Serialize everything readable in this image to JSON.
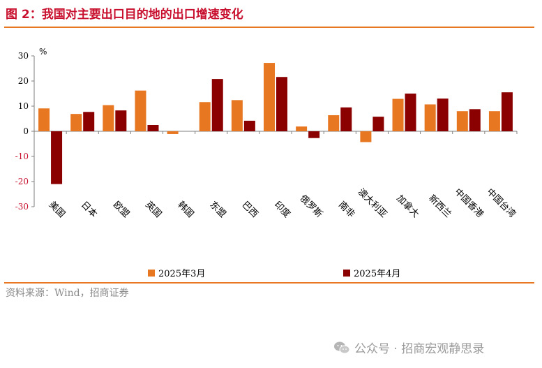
{
  "title": "图 2：我国对主要出口目的地的出口增速变化",
  "source": "资料来源：Wind，招商证券",
  "watermark": "公众号 · 招商宏观静思录",
  "colors": {
    "series1": "#e87722",
    "series2": "#8b0000",
    "negative_tick": "#c8102e",
    "rule": "#e87722"
  },
  "chart_data": {
    "type": "bar",
    "unit": "%",
    "ylim": [
      -30,
      30
    ],
    "yticks": [
      30,
      20,
      10,
      0,
      -10,
      -20,
      -30
    ],
    "grid": false,
    "legend_position": "bottom",
    "categories": [
      "美国",
      "日本",
      "欧盟",
      "英国",
      "韩国",
      "东盟",
      "巴西",
      "印度",
      "俄罗斯",
      "南非",
      "澳大利亚",
      "加拿大",
      "新西兰",
      "中国香港",
      "中国台湾"
    ],
    "series": [
      {
        "name": "2025年3月",
        "values": [
          9.1,
          6.9,
          10.4,
          16.2,
          -1.1,
          11.6,
          12.4,
          27.2,
          1.9,
          6.4,
          -4.3,
          12.9,
          10.7,
          8.0,
          8.0
        ]
      },
      {
        "name": "2025年4月",
        "values": [
          -21.0,
          7.7,
          8.3,
          2.5,
          0.0,
          20.8,
          4.2,
          21.6,
          -2.7,
          9.5,
          5.8,
          15.0,
          13.0,
          8.8,
          15.5
        ]
      }
    ]
  }
}
